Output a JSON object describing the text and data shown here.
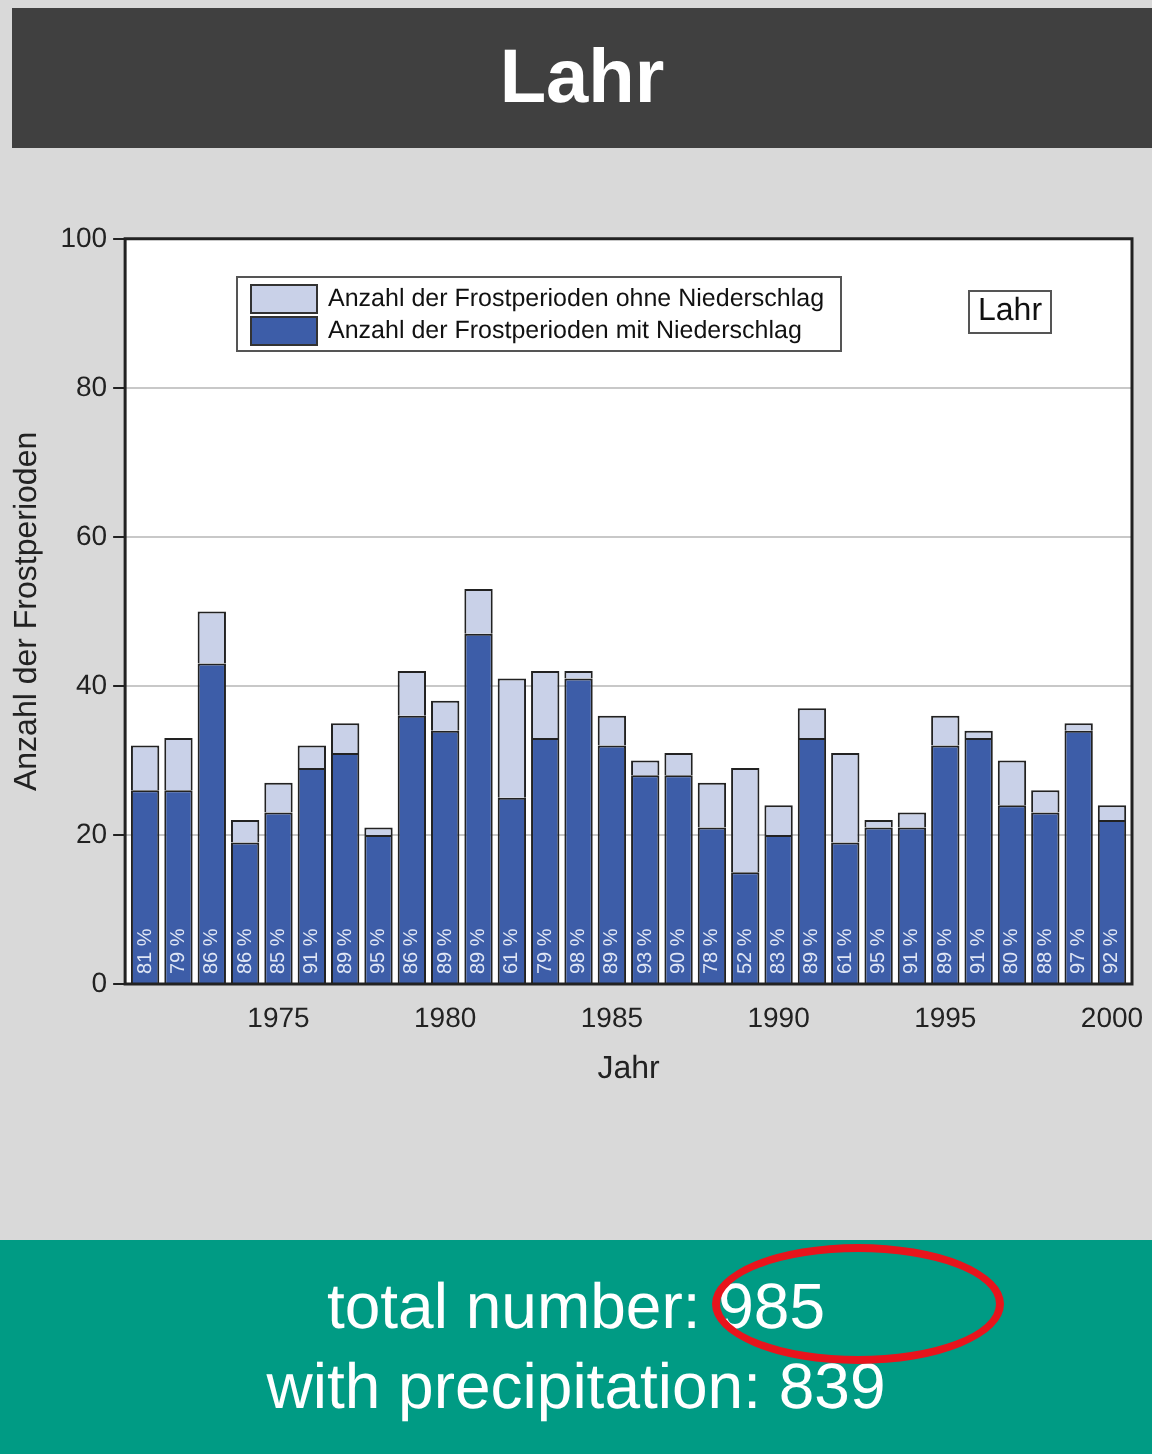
{
  "chart_data": {
    "type": "bar",
    "title": "Lahr",
    "xlabel": "Jahr",
    "ylabel": "Anzahl der Frostperioden",
    "x": [
      1971,
      1972,
      1973,
      1974,
      1975,
      1976,
      1977,
      1978,
      1979,
      1980,
      1981,
      1982,
      1983,
      1984,
      1985,
      1986,
      1987,
      1988,
      1989,
      1990,
      1991,
      1992,
      1993,
      1994,
      1995,
      1996,
      1997,
      1998,
      1999,
      2000
    ],
    "series": [
      {
        "name": "Anzahl der Frostperioden mit Niederschlag",
        "color": "#3d5da8",
        "values": [
          26,
          26,
          43,
          19,
          23,
          29,
          31,
          20,
          36,
          34,
          47,
          25,
          33,
          41,
          32,
          28,
          28,
          21,
          15,
          20,
          33,
          19,
          21,
          21,
          32,
          33,
          24,
          23,
          34,
          22
        ]
      },
      {
        "name": "Anzahl der Frostperioden ohne Niederschlag",
        "color": "#c9d1e8",
        "values": [
          6,
          7,
          7,
          3,
          4,
          3,
          4,
          1,
          6,
          4,
          6,
          16,
          9,
          1,
          4,
          2,
          3,
          6,
          14,
          4,
          4,
          12,
          1,
          2,
          4,
          1,
          6,
          3,
          1,
          2
        ]
      }
    ],
    "stacked": true,
    "xlim": [
      1970.4,
      2000.6
    ],
    "xticks": [
      1975,
      1980,
      1985,
      1990,
      1995,
      2000
    ],
    "ylim": [
      0,
      100
    ],
    "yticks": [
      0,
      20,
      40,
      60,
      80,
      100
    ],
    "grid": "y",
    "legend": "top",
    "annotations": [
      "Lahr",
      "total number: 985",
      "with precipitation: 839",
      {
        "text": "81 %",
        "x": 1971,
        "y": 0
      },
      {
        "text": "79 %",
        "x": 1972,
        "y": 0
      },
      {
        "text": "86 %",
        "x": 1973,
        "y": 0
      },
      {
        "text": "86 %",
        "x": 1974,
        "y": 0
      },
      {
        "text": "85 %",
        "x": 1975,
        "y": 0
      },
      {
        "text": "91 %",
        "x": 1976,
        "y": 0
      },
      {
        "text": "89 %",
        "x": 1977,
        "y": 0
      },
      {
        "text": "95 %",
        "x": 1978,
        "y": 0
      },
      {
        "text": "86 %",
        "x": 1979,
        "y": 0
      },
      {
        "text": "89 %",
        "x": 1980,
        "y": 0
      },
      {
        "text": "89 %",
        "x": 1981,
        "y": 0
      },
      {
        "text": "61 %",
        "x": 1982,
        "y": 0
      },
      {
        "text": "79 %",
        "x": 1983,
        "y": 0
      },
      {
        "text": "98 %",
        "x": 1984,
        "y": 0
      },
      {
        "text": "89 %",
        "x": 1985,
        "y": 0
      },
      {
        "text": "93 %",
        "x": 1986,
        "y": 0
      },
      {
        "text": "90 %",
        "x": 1987,
        "y": 0
      },
      {
        "text": "78 %",
        "x": 1988,
        "y": 0
      },
      {
        "text": "52 %",
        "x": 1989,
        "y": 0
      },
      {
        "text": "83 %",
        "x": 1990,
        "y": 0
      },
      {
        "text": "89 %",
        "x": 1991,
        "y": 0
      },
      {
        "text": "61 %",
        "x": 1992,
        "y": 0
      },
      {
        "text": "95 %",
        "x": 1993,
        "y": 0
      },
      {
        "text": "91 %",
        "x": 1994,
        "y": 0
      },
      {
        "text": "89 %",
        "x": 1995,
        "y": 0
      },
      {
        "text": "91 %",
        "x": 1996,
        "y": 0
      },
      {
        "text": "80 %",
        "x": 1997,
        "y": 0
      },
      {
        "text": "88 %",
        "x": 1998,
        "y": 0
      },
      {
        "text": "97 %",
        "x": 1999,
        "y": 0
      },
      {
        "text": "92 %",
        "x": 2000,
        "y": 0
      }
    ]
  }
}
